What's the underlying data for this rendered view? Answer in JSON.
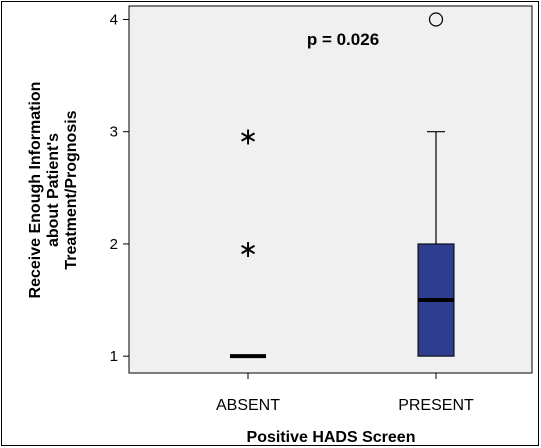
{
  "chart_data": {
    "type": "box",
    "title": "",
    "xlabel": "Positive HADS Screen",
    "ylabel_lines": [
      "Receive Enough Information",
      "about Patient's",
      "Treatment/Prognosis"
    ],
    "annotation": "p = 0.026",
    "yticks": [
      1,
      2,
      3,
      4
    ],
    "ylim": [
      0.85,
      4.12
    ],
    "categories": [
      "ABSENT",
      "PRESENT"
    ],
    "groups": [
      {
        "category": "ABSENT",
        "q1": 1,
        "median": 1,
        "q3": 1,
        "whisker_low": 1,
        "whisker_high": 1,
        "extremes": [
          2,
          3
        ],
        "outliers": []
      },
      {
        "category": "PRESENT",
        "q1": 1,
        "median": 1.5,
        "q3": 2,
        "whisker_low": 1,
        "whisker_high": 3,
        "extremes": [],
        "outliers": [
          4
        ]
      }
    ],
    "box_color": "#2f3d8e",
    "plot_bg": "#f0f0f0",
    "grid": false
  }
}
